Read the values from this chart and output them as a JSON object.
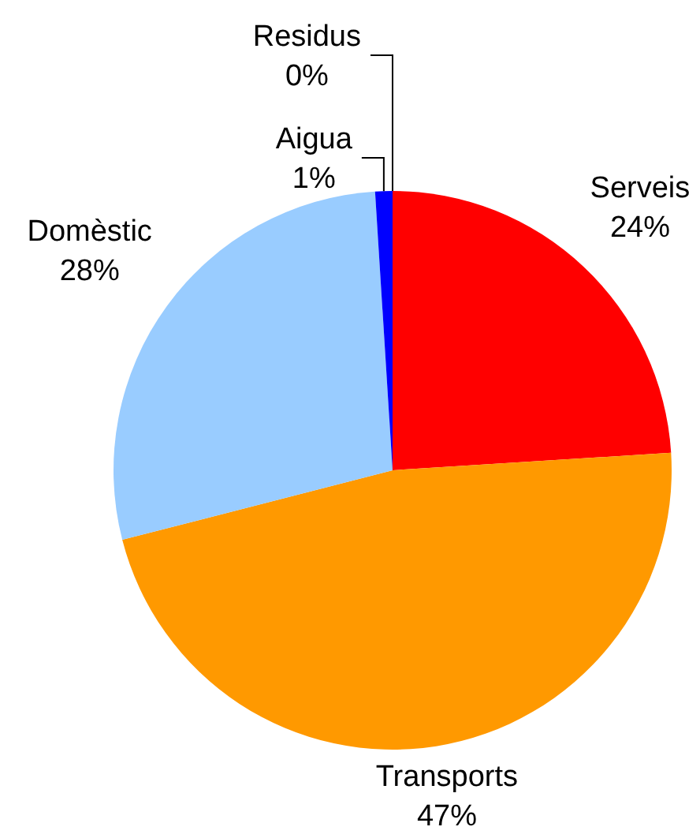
{
  "chart_data": {
    "type": "pie",
    "categories": [
      "Serveis",
      "Transports",
      "Domèstic",
      "Aigua",
      "Residus"
    ],
    "values": [
      24,
      47,
      28,
      1,
      0
    ],
    "colors": [
      "#ff0000",
      "#ff9900",
      "#99ccff",
      "#0000ff",
      "#000000"
    ],
    "value_labels": [
      "24%",
      "47%",
      "28%",
      "1%",
      "0%"
    ]
  }
}
